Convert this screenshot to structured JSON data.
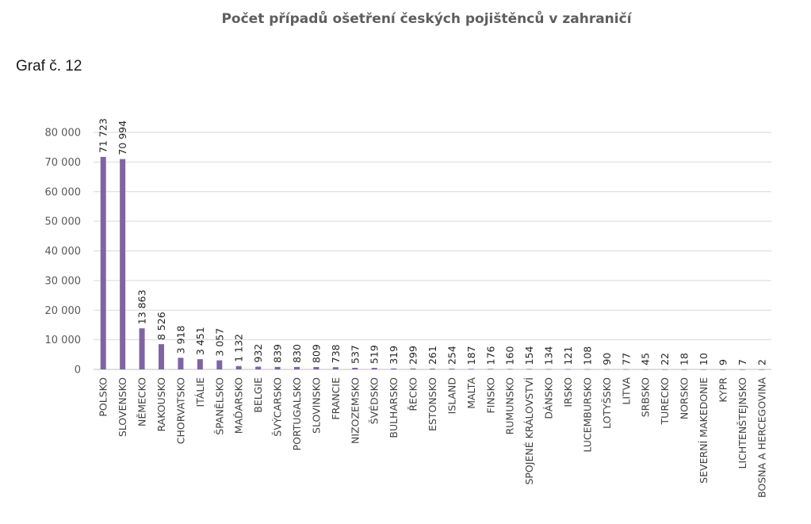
{
  "page": {
    "title": "Počet případů ošetření českých pojištěnců v zahraničí",
    "caption": "Graf č. 12"
  },
  "chart_data": {
    "type": "bar",
    "title": "Počet případů ošetření českých pojištěnců v zahraničí",
    "xlabel": "",
    "ylabel": "",
    "ylim": [
      0,
      80000
    ],
    "yticks": [
      0,
      10000,
      20000,
      30000,
      40000,
      50000,
      60000,
      70000,
      80000
    ],
    "ytick_labels": [
      "0",
      "10 000",
      "20 000",
      "30 000",
      "40 000",
      "50 000",
      "60 000",
      "70 000",
      "80 000"
    ],
    "grid": true,
    "bar_color": "#8064a2",
    "categories": [
      "POLSKO",
      "SLOVENSKO",
      "NĚMECKO",
      "RAKOUSKO",
      "CHORVATSKO",
      "ITÁLIE",
      "ŠPANĚLSKO",
      "MAĎARSKO",
      "BELGIE",
      "ŠVÝCARSKO",
      "PORTUGALSKO",
      "SLOVINSKO",
      "FRANCIE",
      "NIZOZEMSKO",
      "ŠVÉDSKO",
      "BULHARSKO",
      "ŘECKO",
      "ESTONSKO",
      "ISLAND",
      "MALTA",
      "FINSKO",
      "RUMUNSKO",
      "SPOJENÉ KRÁLOVSTVÍ",
      "DÁNSKO",
      "IRSKO",
      "LUCEMBURSKO",
      "LOTYŠSKO",
      "LITVA",
      "SRBSKO",
      "TURECKO",
      "NORSKO",
      "SEVERNÍ MAKEDONIE",
      "KYPR",
      "LICHTENŠTEJNSKO",
      "BOSNA A HERCEGOVINA"
    ],
    "values": [
      71723,
      70994,
      13863,
      8526,
      3918,
      3451,
      3057,
      1132,
      932,
      839,
      830,
      809,
      738,
      537,
      519,
      319,
      299,
      261,
      254,
      187,
      176,
      160,
      154,
      134,
      121,
      108,
      90,
      77,
      45,
      22,
      18,
      10,
      9,
      7,
      2
    ],
    "value_labels": [
      "71 723",
      "70 994",
      "13 863",
      "8 526",
      "3 918",
      "3 451",
      "3 057",
      "1 132",
      "932",
      "839",
      "830",
      "809",
      "738",
      "537",
      "519",
      "319",
      "299",
      "261",
      "254",
      "187",
      "176",
      "160",
      "154",
      "134",
      "121",
      "108",
      "90",
      "77",
      "45",
      "22",
      "18",
      "10",
      "9",
      "7",
      "2"
    ]
  }
}
